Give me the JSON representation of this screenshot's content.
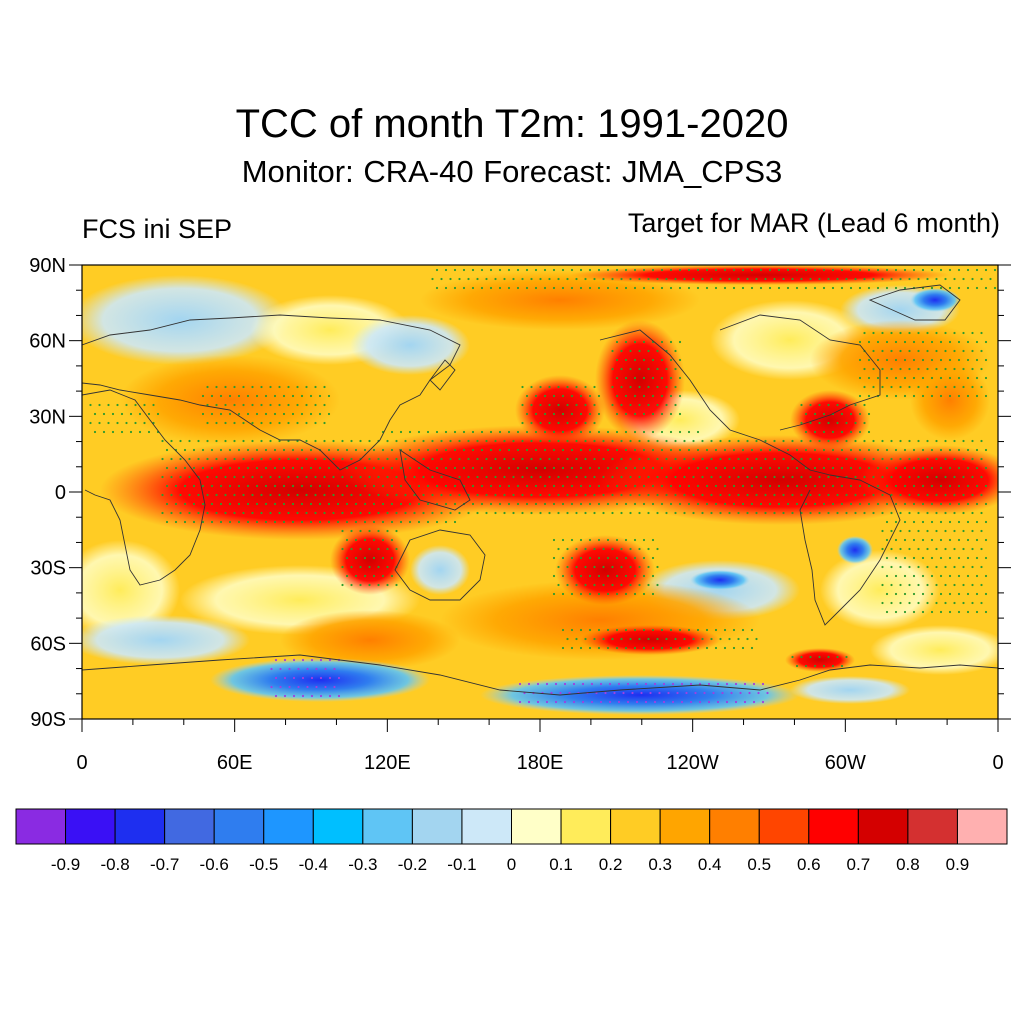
{
  "title": "TCC of month T2m: 1991-2020",
  "subtitle": {
    "monitor": "Monitor: CRA-40",
    "forecast": "Forecast: JMA_CPS3"
  },
  "left_label": "FCS ini SEP",
  "right_label": "Target for MAR (Lead 6 month)",
  "map": {
    "projection": "cylindrical equidistant",
    "lat_range": [
      -90,
      90
    ],
    "lon_range": [
      0,
      360
    ],
    "lat_ticks": [
      {
        "value": 90,
        "label": "90N"
      },
      {
        "value": 60,
        "label": "60N"
      },
      {
        "value": 30,
        "label": "30N"
      },
      {
        "value": 0,
        "label": "0"
      },
      {
        "value": -30,
        "label": "30S"
      },
      {
        "value": -60,
        "label": "60S"
      },
      {
        "value": -90,
        "label": "90S"
      }
    ],
    "lon_ticks": [
      {
        "value": 0,
        "label": "0"
      },
      {
        "value": 60,
        "label": "60E"
      },
      {
        "value": 120,
        "label": "120E"
      },
      {
        "value": 180,
        "label": "180E"
      },
      {
        "value": 240,
        "label": "120W"
      },
      {
        "value": 300,
        "label": "60W"
      },
      {
        "value": 360,
        "label": "0"
      }
    ],
    "stipple_color": "#2e9a2e",
    "stipple_color_negative": "#a040e0"
  },
  "colorbar": {
    "colors": [
      "#8a2be2",
      "#3a10f5",
      "#1e2ff0",
      "#4169e1",
      "#2f7def",
      "#1e96ff",
      "#00bfff",
      "#5fc5f5",
      "#a3d5f0",
      "#cde8f8",
      "#ffffc8",
      "#ffec5a",
      "#ffcc24",
      "#ffa500",
      "#ff7f00",
      "#ff4500",
      "#ff0000",
      "#d40000",
      "#d43030",
      "#ffb0b0"
    ],
    "labels": [
      "-0.9",
      "-0.8",
      "-0.7",
      "-0.6",
      "-0.5",
      "-0.4",
      "-0.3",
      "-0.2",
      "-0.1",
      "0",
      "0.1",
      "0.2",
      "0.3",
      "0.4",
      "0.5",
      "0.6",
      "0.7",
      "0.8",
      "0.9"
    ]
  }
}
